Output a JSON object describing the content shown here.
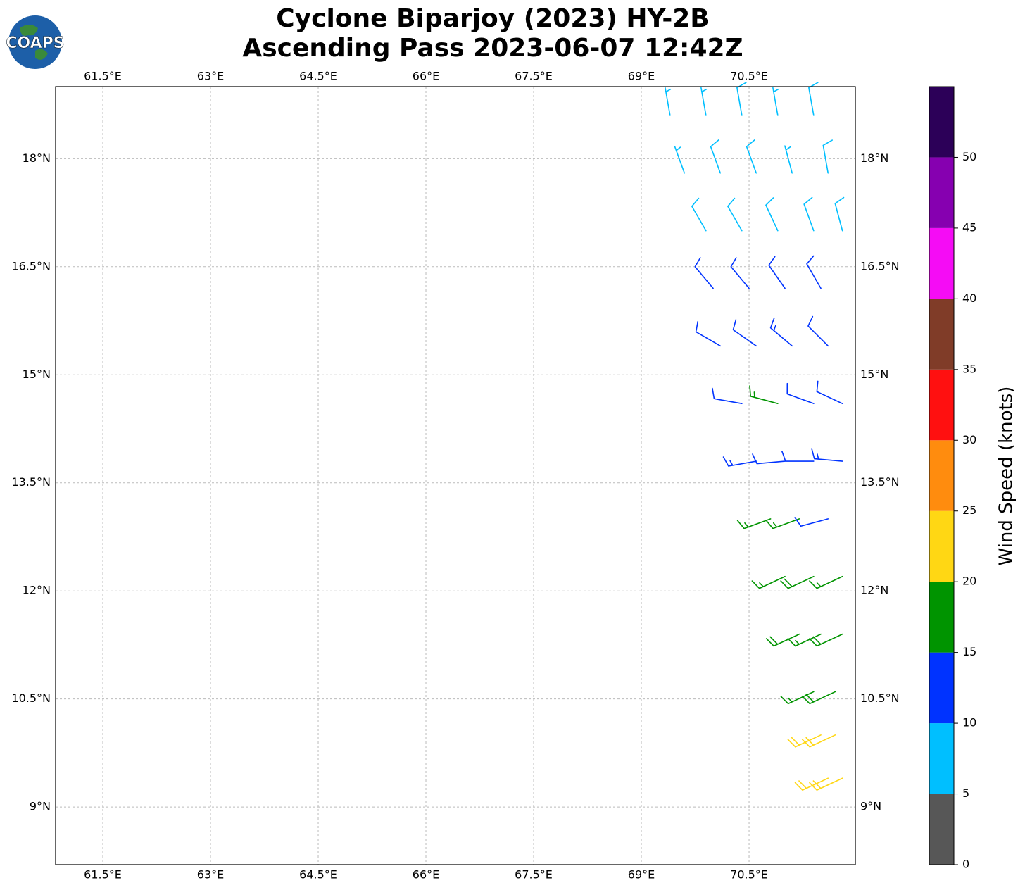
{
  "title": "Cyclone Biparjoy (2023) HY-2B",
  "subtitle": "Ascending Pass 2023-06-07 12:42Z",
  "logo": "COAPS",
  "map": {
    "xlim": [
      60.843,
      71.98
    ],
    "ylim": [
      8.2,
      19.0
    ],
    "xticks": [
      {
        "value": 61.5,
        "label": "61.5°E"
      },
      {
        "value": 63,
        "label": "63°E"
      },
      {
        "value": 64.5,
        "label": "64.5°E"
      },
      {
        "value": 66,
        "label": "66°E"
      },
      {
        "value": 67.5,
        "label": "67.5°E"
      },
      {
        "value": 69,
        "label": "69°E"
      },
      {
        "value": 70.5,
        "label": "70.5°E"
      }
    ],
    "yticks": [
      {
        "value": 9,
        "label": "9°N"
      },
      {
        "value": 10.5,
        "label": "10.5°N"
      },
      {
        "value": 12,
        "label": "12°N"
      },
      {
        "value": 13.5,
        "label": "13.5°N"
      },
      {
        "value": 15,
        "label": "15°N"
      },
      {
        "value": 16.5,
        "label": "16.5°N"
      },
      {
        "value": 18,
        "label": "18°N"
      }
    ],
    "grid": true,
    "barbs": [
      {
        "lon": 69.4,
        "lat": 18.6,
        "speed": 7,
        "direction": 350
      },
      {
        "lon": 69.9,
        "lat": 18.6,
        "speed": 7,
        "direction": 350
      },
      {
        "lon": 70.4,
        "lat": 18.6,
        "speed": 8,
        "direction": 350
      },
      {
        "lon": 70.9,
        "lat": 18.6,
        "speed": 7,
        "direction": 350
      },
      {
        "lon": 71.4,
        "lat": 18.6,
        "speed": 8,
        "direction": 350
      },
      {
        "lon": 69.6,
        "lat": 17.8,
        "speed": 7,
        "direction": 340
      },
      {
        "lon": 70.1,
        "lat": 17.8,
        "speed": 8,
        "direction": 340
      },
      {
        "lon": 70.6,
        "lat": 17.8,
        "speed": 8,
        "direction": 340
      },
      {
        "lon": 71.1,
        "lat": 17.8,
        "speed": 7,
        "direction": 345
      },
      {
        "lon": 71.6,
        "lat": 17.8,
        "speed": 9,
        "direction": 350
      },
      {
        "lon": 69.9,
        "lat": 17.0,
        "speed": 8,
        "direction": 330
      },
      {
        "lon": 70.4,
        "lat": 17.0,
        "speed": 8,
        "direction": 330
      },
      {
        "lon": 70.9,
        "lat": 17.0,
        "speed": 8,
        "direction": 335
      },
      {
        "lon": 71.4,
        "lat": 17.0,
        "speed": 9,
        "direction": 340
      },
      {
        "lon": 71.8,
        "lat": 17.0,
        "speed": 9,
        "direction": 345
      },
      {
        "lon": 70.0,
        "lat": 16.2,
        "speed": 12,
        "direction": 320
      },
      {
        "lon": 70.5,
        "lat": 16.2,
        "speed": 12,
        "direction": 320
      },
      {
        "lon": 71.0,
        "lat": 16.2,
        "speed": 11,
        "direction": 325
      },
      {
        "lon": 71.5,
        "lat": 16.2,
        "speed": 12,
        "direction": 330
      },
      {
        "lon": 70.1,
        "lat": 15.4,
        "speed": 12,
        "direction": 300
      },
      {
        "lon": 70.6,
        "lat": 15.4,
        "speed": 12,
        "direction": 305
      },
      {
        "lon": 71.1,
        "lat": 15.4,
        "speed": 13,
        "direction": 310
      },
      {
        "lon": 71.6,
        "lat": 15.4,
        "speed": 12,
        "direction": 315
      },
      {
        "lon": 70.4,
        "lat": 14.6,
        "speed": 12,
        "direction": 280
      },
      {
        "lon": 70.9,
        "lat": 14.6,
        "speed": 16,
        "direction": 285
      },
      {
        "lon": 71.4,
        "lat": 14.6,
        "speed": 12,
        "direction": 290
      },
      {
        "lon": 71.8,
        "lat": 14.6,
        "speed": 12,
        "direction": 295
      },
      {
        "lon": 70.6,
        "lat": 13.8,
        "speed": 13,
        "direction": 260
      },
      {
        "lon": 71.0,
        "lat": 13.8,
        "speed": 12,
        "direction": 265
      },
      {
        "lon": 71.4,
        "lat": 13.8,
        "speed": 12,
        "direction": 270
      },
      {
        "lon": 71.8,
        "lat": 13.8,
        "speed": 13,
        "direction": 275
      },
      {
        "lon": 70.8,
        "lat": 13.0,
        "speed": 17,
        "direction": 250
      },
      {
        "lon": 71.2,
        "lat": 13.0,
        "speed": 16,
        "direction": 250
      },
      {
        "lon": 71.6,
        "lat": 13.0,
        "speed": 12,
        "direction": 255
      },
      {
        "lon": 71.0,
        "lat": 12.2,
        "speed": 17,
        "direction": 245
      },
      {
        "lon": 71.4,
        "lat": 12.2,
        "speed": 18,
        "direction": 245
      },
      {
        "lon": 71.8,
        "lat": 12.2,
        "speed": 17,
        "direction": 245
      },
      {
        "lon": 71.2,
        "lat": 11.4,
        "speed": 18,
        "direction": 245
      },
      {
        "lon": 71.5,
        "lat": 11.4,
        "speed": 17,
        "direction": 245
      },
      {
        "lon": 71.8,
        "lat": 11.4,
        "speed": 18,
        "direction": 245
      },
      {
        "lon": 71.4,
        "lat": 10.6,
        "speed": 17,
        "direction": 245
      },
      {
        "lon": 71.7,
        "lat": 10.6,
        "speed": 18,
        "direction": 245
      },
      {
        "lon": 71.5,
        "lat": 10.0,
        "speed": 22,
        "direction": 245
      },
      {
        "lon": 71.7,
        "lat": 10.0,
        "speed": 21,
        "direction": 245
      },
      {
        "lon": 71.6,
        "lat": 9.4,
        "speed": 22,
        "direction": 245
      },
      {
        "lon": 71.8,
        "lat": 9.4,
        "speed": 22,
        "direction": 245
      }
    ]
  },
  "colorbar": {
    "label": "Wind Speed (knots)",
    "clim": [
      0,
      55
    ],
    "bounds": [
      0,
      5,
      10,
      15,
      20,
      25,
      30,
      35,
      40,
      45,
      50,
      55
    ],
    "colors": [
      "#575757",
      "#00bfff",
      "#0033ff",
      "#009400",
      "#ffd714",
      "#ff8c0e",
      "#ff1010",
      "#803c28",
      "#f50cf5",
      "#8600b0",
      "#2c0058"
    ],
    "ticks": [
      0,
      5,
      10,
      15,
      20,
      25,
      30,
      35,
      40,
      45,
      50
    ]
  }
}
